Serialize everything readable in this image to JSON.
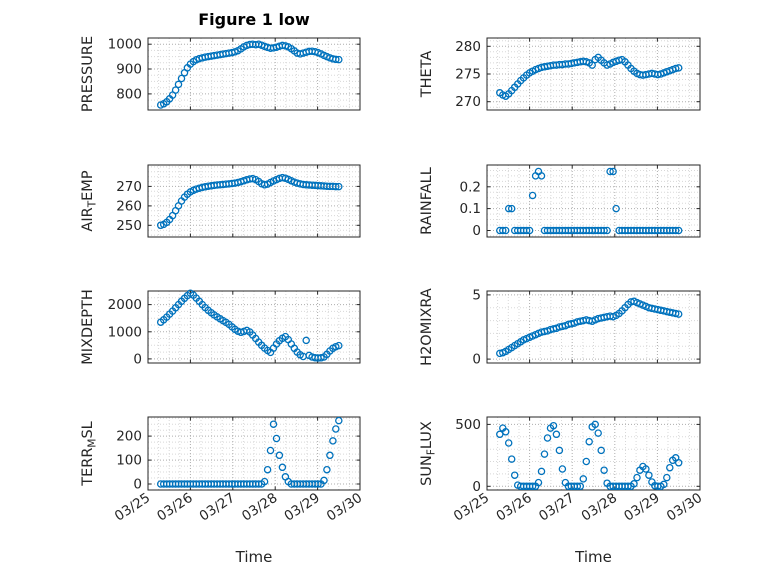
{
  "figure": {
    "title": "Figure 1 low",
    "xlabel": "Time",
    "accent_color": "#0072BD",
    "axis_color": "#262626",
    "grid_major_color": "#adadad",
    "grid_minor_color": "#d8d8d8",
    "xlim": [
      0,
      5
    ],
    "xticks": [
      0,
      1,
      2,
      3,
      4,
      5
    ],
    "xtick_labels": [
      "03/25",
      "03/26",
      "03/27",
      "03/28",
      "03/29",
      "03/30"
    ],
    "xminor_step": 0.25
  },
  "chart_data": [
    {
      "type": "scatter",
      "name": "PRESSURE",
      "marker": "circle-open",
      "ylabel": [
        {
          "text": "PRESSURE"
        }
      ],
      "ylim": [
        735,
        1025
      ],
      "yticks": [
        800,
        900,
        1000
      ],
      "ytick_labels": [
        "800",
        "900",
        "1000"
      ],
      "yminor_step": 25,
      "x0": 0.3,
      "dx": 0.07,
      "y": [
        755,
        760,
        768,
        780,
        795,
        815,
        838,
        862,
        885,
        905,
        920,
        930,
        937,
        942,
        945,
        948,
        950,
        952,
        954,
        956,
        958,
        960,
        962,
        964,
        966,
        969,
        974,
        981,
        989,
        995,
        999,
        1000,
        998,
        1000,
        996,
        991,
        987,
        984,
        985,
        988,
        992,
        995,
        993,
        989,
        982,
        973,
        964,
        961,
        964,
        968,
        971,
        972,
        970,
        966,
        961,
        955,
        950,
        945,
        941,
        939,
        938
      ]
    },
    {
      "type": "scatter",
      "name": "THETA",
      "marker": "circle-open",
      "ylabel": [
        {
          "text": "THETA"
        }
      ],
      "ylim": [
        268.5,
        281.5
      ],
      "yticks": [
        270,
        275,
        280
      ],
      "ytick_labels": [
        "270",
        "275",
        "280"
      ],
      "yminor_step": 1,
      "x0": 0.3,
      "dx": 0.07,
      "y": [
        271.6,
        271.2,
        271.0,
        271.4,
        272.0,
        272.6,
        273.2,
        273.8,
        274.3,
        274.8,
        275.2,
        275.5,
        275.8,
        276.0,
        276.2,
        276.3,
        276.4,
        276.5,
        276.6,
        276.6,
        276.7,
        276.7,
        276.8,
        276.8,
        276.9,
        277.0,
        277.1,
        277.2,
        277.3,
        277.2,
        277.0,
        276.6,
        277.6,
        278.0,
        277.5,
        277.0,
        276.6,
        276.8,
        277.1,
        277.3,
        277.5,
        277.6,
        277.2,
        276.6,
        276.0,
        275.5,
        275.1,
        274.9,
        274.8,
        274.9,
        275.0,
        275.1,
        275.0,
        274.9,
        275.0,
        275.2,
        275.4,
        275.6,
        275.8,
        276.0,
        276.1
      ]
    },
    {
      "type": "scatter",
      "name": "AIR_TEMP",
      "marker": "circle-open",
      "ylabel": [
        {
          "text": "AIR"
        },
        {
          "text": "T",
          "sub": true
        },
        {
          "text": "EMP"
        }
      ],
      "ylim": [
        244,
        281
      ],
      "yticks": [
        250,
        260,
        270
      ],
      "ytick_labels": [
        "250",
        "260",
        "270"
      ],
      "yminor_step": 2.5,
      "x0": 0.3,
      "dx": 0.07,
      "y": [
        250.0,
        250.5,
        251.5,
        253.0,
        255.0,
        257.5,
        260.0,
        262.5,
        264.5,
        266.0,
        267.2,
        268.0,
        268.6,
        269.1,
        269.5,
        269.8,
        270.1,
        270.3,
        270.5,
        270.7,
        270.9,
        271.0,
        271.2,
        271.3,
        271.5,
        271.7,
        272.0,
        272.4,
        272.9,
        273.4,
        273.8,
        274.0,
        273.5,
        272.5,
        271.4,
        270.8,
        271.2,
        272.0,
        272.8,
        273.5,
        274.1,
        274.5,
        274.2,
        273.6,
        272.9,
        272.2,
        271.7,
        271.3,
        271.0,
        270.8,
        270.7,
        270.6,
        270.5,
        270.4,
        270.3,
        270.2,
        270.1,
        270.0,
        270.0,
        269.9,
        269.9
      ]
    },
    {
      "type": "scatter",
      "name": "RAINFALL",
      "marker": "circle-open",
      "ylabel": [
        {
          "text": "RAINFALL"
        }
      ],
      "ylim": [
        -0.03,
        0.3
      ],
      "yticks": [
        0,
        0.1,
        0.2
      ],
      "ytick_labels": [
        "0",
        "0.1",
        "0.2"
      ],
      "yminor_step": 0.025,
      "x0": 0.3,
      "dx": 0.07,
      "y": [
        0,
        0,
        0,
        0.1,
        0.1,
        0,
        0,
        0,
        0,
        0,
        0,
        0.16,
        0.25,
        0.27,
        0.25,
        0,
        0,
        0,
        0,
        0,
        0,
        0,
        0,
        0,
        0,
        0,
        0,
        0,
        0,
        0,
        0,
        0,
        0,
        0,
        0,
        0,
        0,
        0.27,
        0.27,
        0.1,
        0,
        0,
        0,
        0,
        0,
        0,
        0,
        0,
        0,
        0,
        0,
        0,
        0,
        0,
        0,
        0,
        0,
        0,
        0,
        0,
        0
      ]
    },
    {
      "type": "scatter",
      "name": "MIXDEPTH",
      "marker": "circle-open",
      "ylabel": [
        {
          "text": "MIXDEPTH"
        }
      ],
      "ylim": [
        -150,
        2500
      ],
      "yticks": [
        0,
        1000,
        2000
      ],
      "ytick_labels": [
        "0",
        "1000",
        "2000"
      ],
      "yminor_step": 250,
      "x0": 0.3,
      "dx": 0.07,
      "y": [
        1350,
        1440,
        1540,
        1650,
        1760,
        1880,
        2000,
        2120,
        2230,
        2330,
        2420,
        2350,
        2240,
        2120,
        2000,
        1890,
        1790,
        1700,
        1620,
        1545,
        1475,
        1410,
        1345,
        1270,
        1180,
        1090,
        1020,
        980,
        1010,
        1050,
        990,
        880,
        750,
        620,
        500,
        400,
        310,
        240,
        400,
        550,
        670,
        760,
        820,
        710,
        550,
        390,
        250,
        150,
        90,
        680,
        130,
        70,
        45,
        35,
        40,
        70,
        170,
        290,
        390,
        450,
        490
      ]
    },
    {
      "type": "scatter",
      "name": "H2OMIXRA",
      "marker": "circle-open",
      "ylabel": [
        {
          "text": "H2OMIXRA"
        }
      ],
      "ylim": [
        -0.3,
        5.3
      ],
      "yticks": [
        0,
        5
      ],
      "ytick_labels": [
        "0",
        "5"
      ],
      "yminor_step": 1,
      "x0": 0.3,
      "dx": 0.07,
      "y": [
        0.45,
        0.5,
        0.6,
        0.75,
        0.9,
        1.05,
        1.2,
        1.35,
        1.5,
        1.6,
        1.7,
        1.8,
        1.9,
        2.0,
        2.1,
        2.15,
        2.2,
        2.3,
        2.35,
        2.4,
        2.5,
        2.55,
        2.6,
        2.7,
        2.75,
        2.8,
        2.9,
        2.95,
        3.0,
        3.05,
        3.0,
        2.95,
        3.05,
        3.15,
        3.2,
        3.25,
        3.3,
        3.35,
        3.3,
        3.4,
        3.55,
        3.75,
        4.0,
        4.25,
        4.45,
        4.5,
        4.4,
        4.3,
        4.2,
        4.1,
        4.0,
        3.95,
        3.9,
        3.85,
        3.8,
        3.75,
        3.7,
        3.65,
        3.6,
        3.55,
        3.5
      ]
    },
    {
      "type": "scatter",
      "name": "TERR_MSL",
      "marker": "circle-open",
      "ylabel": [
        {
          "text": "TERR"
        },
        {
          "text": "M",
          "sub": true
        },
        {
          "text": "SL"
        }
      ],
      "ylim": [
        -25,
        280
      ],
      "yticks": [
        0,
        100,
        200
      ],
      "ytick_labels": [
        "0",
        "100",
        "200"
      ],
      "yminor_step": 25,
      "x0": 0.3,
      "dx": 0.07,
      "y": [
        0,
        0,
        0,
        0,
        0,
        0,
        0,
        0,
        0,
        0,
        0,
        0,
        0,
        0,
        0,
        0,
        0,
        0,
        0,
        0,
        0,
        0,
        0,
        0,
        0,
        0,
        0,
        0,
        0,
        0,
        0,
        0,
        0,
        0,
        0,
        10,
        60,
        140,
        250,
        190,
        120,
        70,
        30,
        10,
        0,
        0,
        0,
        0,
        0,
        0,
        0,
        0,
        0,
        0,
        0,
        15,
        60,
        120,
        180,
        230,
        265
      ]
    },
    {
      "type": "scatter",
      "name": "SUN_FLUX",
      "marker": "circle-open",
      "ylabel": [
        {
          "text": "SUN"
        },
        {
          "text": "F",
          "sub": true
        },
        {
          "text": "LUX"
        }
      ],
      "ylim": [
        -30,
        560
      ],
      "yticks": [
        0,
        500
      ],
      "ytick_labels": [
        "0",
        "500"
      ],
      "yminor_step": 100,
      "x0": 0.3,
      "dx": 0.07,
      "y": [
        420,
        470,
        440,
        350,
        220,
        90,
        10,
        0,
        0,
        0,
        0,
        0,
        0,
        30,
        120,
        260,
        390,
        470,
        490,
        420,
        290,
        140,
        30,
        0,
        0,
        0,
        0,
        0,
        60,
        200,
        360,
        480,
        500,
        430,
        290,
        130,
        25,
        0,
        0,
        0,
        0,
        0,
        0,
        0,
        0,
        20,
        70,
        130,
        160,
        140,
        90,
        35,
        5,
        0,
        0,
        15,
        70,
        150,
        210,
        230,
        190
      ]
    }
  ]
}
